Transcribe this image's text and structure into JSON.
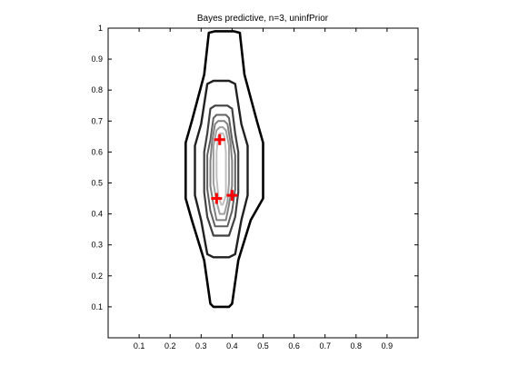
{
  "chart_data": {
    "type": "contour",
    "title": "Bayes predictive, n=3, uninfPrior",
    "xlabel": "",
    "ylabel": "",
    "xlim": [
      0,
      1
    ],
    "ylim": [
      0,
      1
    ],
    "grid": false,
    "legend": "none",
    "x_ticks": [
      0.1,
      0.2,
      0.3,
      0.4,
      0.5,
      0.6,
      0.7,
      0.8,
      0.9
    ],
    "x_tick_labels": [
      "0.1",
      "0.2",
      "0.3",
      "0.4",
      "0.5",
      "0.6",
      "0.7",
      "0.8",
      "0.9"
    ],
    "y_ticks": [
      0.1,
      0.2,
      0.3,
      0.4,
      0.5,
      0.6,
      0.7,
      0.8,
      0.9,
      1
    ],
    "y_tick_labels": [
      "0.1",
      "0.2",
      "0.3",
      "0.4",
      "0.5",
      "0.6",
      "0.7",
      "0.8",
      "0.9",
      "1"
    ],
    "data_points": [
      {
        "x": 0.36,
        "y": 0.64
      },
      {
        "x": 0.35,
        "y": 0.45
      },
      {
        "x": 0.4,
        "y": 0.46
      }
    ],
    "marker_color": "#ff0000",
    "contour_colors": [
      "#000000",
      "#202020",
      "#404040",
      "#606060",
      "#808080",
      "#a0a0a0",
      "#c0c0c0"
    ],
    "contours": [
      {
        "level": 1,
        "points": [
          [
            0.345,
            0.99
          ],
          [
            0.325,
            0.985
          ],
          [
            0.31,
            0.85
          ],
          [
            0.27,
            0.7
          ],
          [
            0.25,
            0.63
          ],
          [
            0.25,
            0.45
          ],
          [
            0.27,
            0.38
          ],
          [
            0.31,
            0.25
          ],
          [
            0.33,
            0.11
          ],
          [
            0.34,
            0.1
          ],
          [
            0.39,
            0.1
          ],
          [
            0.4,
            0.11
          ],
          [
            0.42,
            0.25
          ],
          [
            0.46,
            0.38
          ],
          [
            0.5,
            0.45
          ],
          [
            0.5,
            0.63
          ],
          [
            0.48,
            0.7
          ],
          [
            0.44,
            0.85
          ],
          [
            0.425,
            0.985
          ],
          [
            0.405,
            0.99
          ]
        ]
      },
      {
        "level": 2,
        "points": [
          [
            0.34,
            0.83
          ],
          [
            0.32,
            0.82
          ],
          [
            0.3,
            0.69
          ],
          [
            0.28,
            0.62
          ],
          [
            0.28,
            0.46
          ],
          [
            0.3,
            0.38
          ],
          [
            0.32,
            0.27
          ],
          [
            0.34,
            0.26
          ],
          [
            0.39,
            0.26
          ],
          [
            0.41,
            0.27
          ],
          [
            0.43,
            0.38
          ],
          [
            0.45,
            0.46
          ],
          [
            0.45,
            0.62
          ],
          [
            0.43,
            0.69
          ],
          [
            0.41,
            0.82
          ],
          [
            0.39,
            0.83
          ]
        ]
      },
      {
        "level": 3,
        "points": [
          [
            0.345,
            0.75
          ],
          [
            0.33,
            0.74
          ],
          [
            0.32,
            0.66
          ],
          [
            0.31,
            0.6
          ],
          [
            0.31,
            0.47
          ],
          [
            0.32,
            0.39
          ],
          [
            0.34,
            0.33
          ],
          [
            0.39,
            0.33
          ],
          [
            0.41,
            0.39
          ],
          [
            0.42,
            0.47
          ],
          [
            0.42,
            0.6
          ],
          [
            0.41,
            0.66
          ],
          [
            0.4,
            0.74
          ],
          [
            0.385,
            0.75
          ]
        ]
      },
      {
        "level": 4,
        "points": [
          [
            0.35,
            0.72
          ],
          [
            0.34,
            0.71
          ],
          [
            0.33,
            0.64
          ],
          [
            0.32,
            0.59
          ],
          [
            0.32,
            0.48
          ],
          [
            0.33,
            0.41
          ],
          [
            0.345,
            0.36
          ],
          [
            0.385,
            0.36
          ],
          [
            0.4,
            0.41
          ],
          [
            0.41,
            0.48
          ],
          [
            0.41,
            0.59
          ],
          [
            0.4,
            0.64
          ],
          [
            0.39,
            0.71
          ],
          [
            0.38,
            0.72
          ]
        ]
      },
      {
        "level": 5,
        "points": [
          [
            0.355,
            0.7
          ],
          [
            0.345,
            0.69
          ],
          [
            0.335,
            0.63
          ],
          [
            0.33,
            0.57
          ],
          [
            0.33,
            0.49
          ],
          [
            0.34,
            0.43
          ],
          [
            0.35,
            0.38
          ],
          [
            0.38,
            0.38
          ],
          [
            0.39,
            0.43
          ],
          [
            0.4,
            0.49
          ],
          [
            0.4,
            0.57
          ],
          [
            0.395,
            0.63
          ],
          [
            0.385,
            0.69
          ],
          [
            0.375,
            0.7
          ]
        ]
      },
      {
        "level": 6,
        "points": [
          [
            0.36,
            0.68
          ],
          [
            0.35,
            0.67
          ],
          [
            0.34,
            0.62
          ],
          [
            0.34,
            0.5
          ],
          [
            0.35,
            0.44
          ],
          [
            0.36,
            0.4
          ],
          [
            0.375,
            0.4
          ],
          [
            0.385,
            0.44
          ],
          [
            0.39,
            0.5
          ],
          [
            0.39,
            0.62
          ],
          [
            0.38,
            0.67
          ],
          [
            0.37,
            0.68
          ]
        ]
      },
      {
        "level": 7,
        "points": [
          [
            0.36,
            0.66
          ],
          [
            0.355,
            0.65
          ],
          [
            0.35,
            0.6
          ],
          [
            0.35,
            0.52
          ],
          [
            0.355,
            0.46
          ],
          [
            0.365,
            0.43
          ],
          [
            0.37,
            0.43
          ],
          [
            0.38,
            0.46
          ],
          [
            0.38,
            0.52
          ],
          [
            0.38,
            0.6
          ],
          [
            0.375,
            0.65
          ],
          [
            0.37,
            0.66
          ]
        ]
      }
    ]
  }
}
